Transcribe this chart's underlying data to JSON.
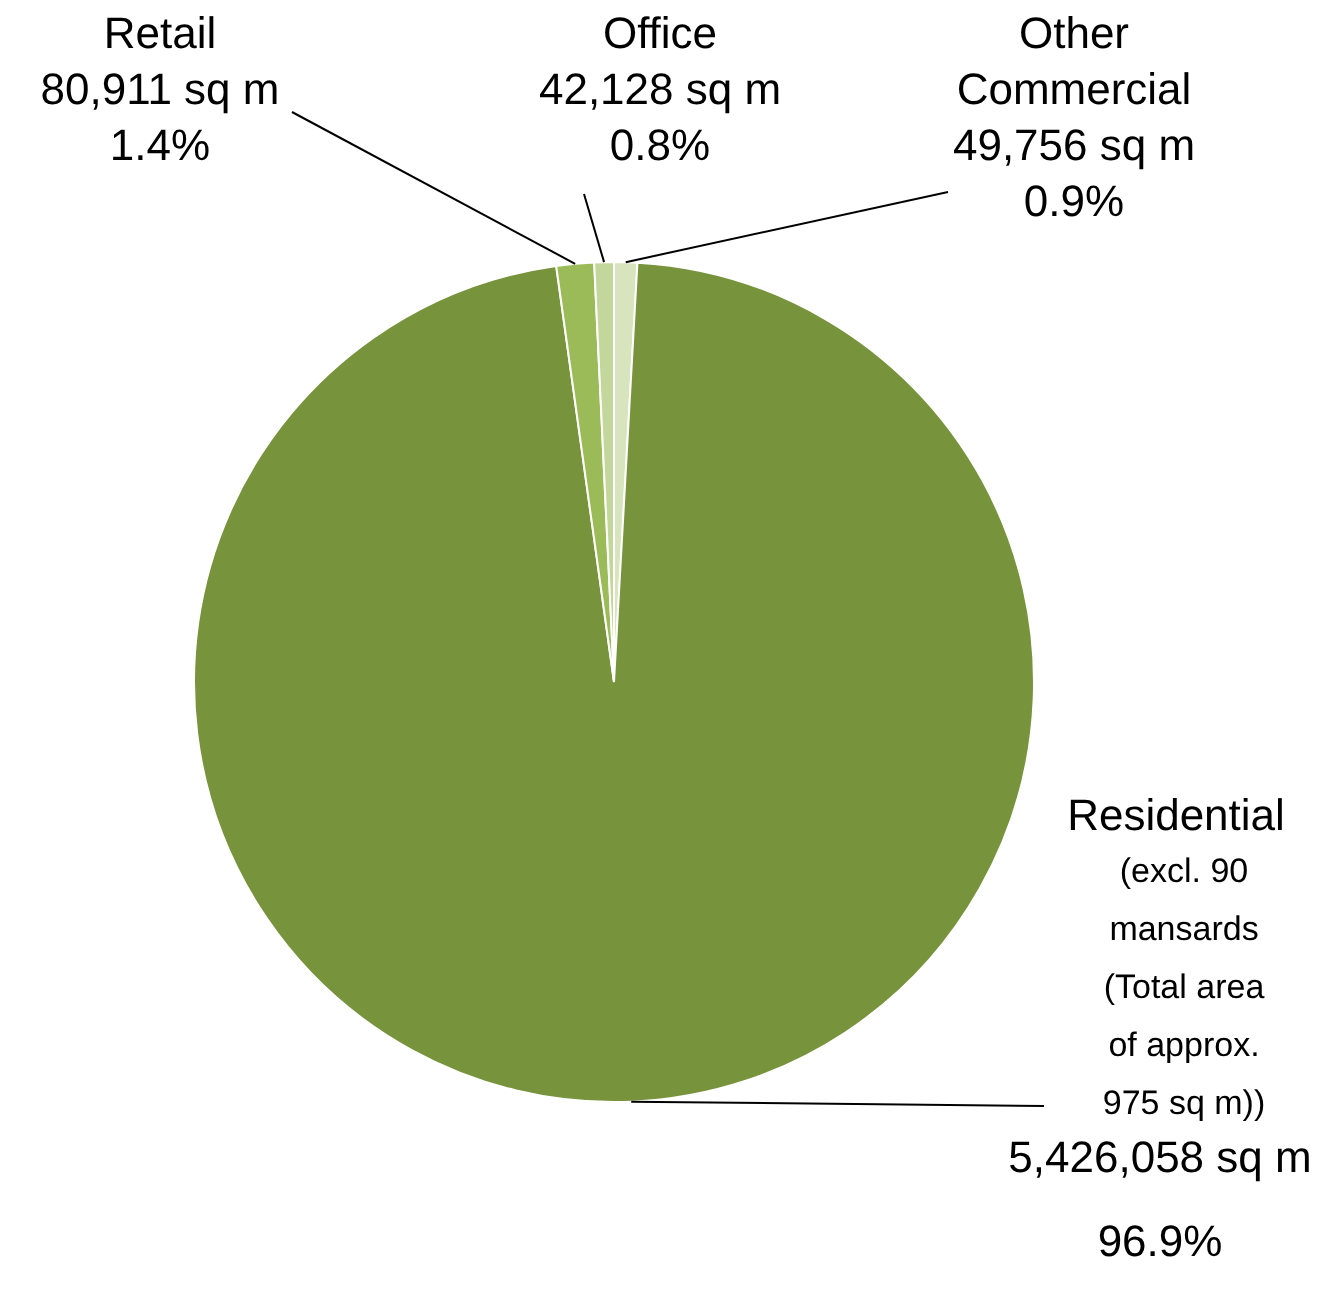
{
  "chart_data": {
    "type": "pie",
    "categories": [
      "Other Commercial",
      "Residential",
      "Retail",
      "Office"
    ],
    "values": [
      49756,
      5426058,
      80911,
      42128
    ],
    "value_labels": [
      "49,756 sq m\n0.9%",
      "5,426,058 sq m\n96.9%",
      "80,911 sq m\n1.4%",
      "42,128 sq m\n0.8%"
    ],
    "colors": [
      "#d7e4bd",
      "#77933c",
      "#9bbb59",
      "#c3d69b"
    ],
    "annotations": [
      {
        "text": "(excl. 90 mansards (Total area of approx. 975 sq m))",
        "x": "Residential"
      }
    ]
  }
}
